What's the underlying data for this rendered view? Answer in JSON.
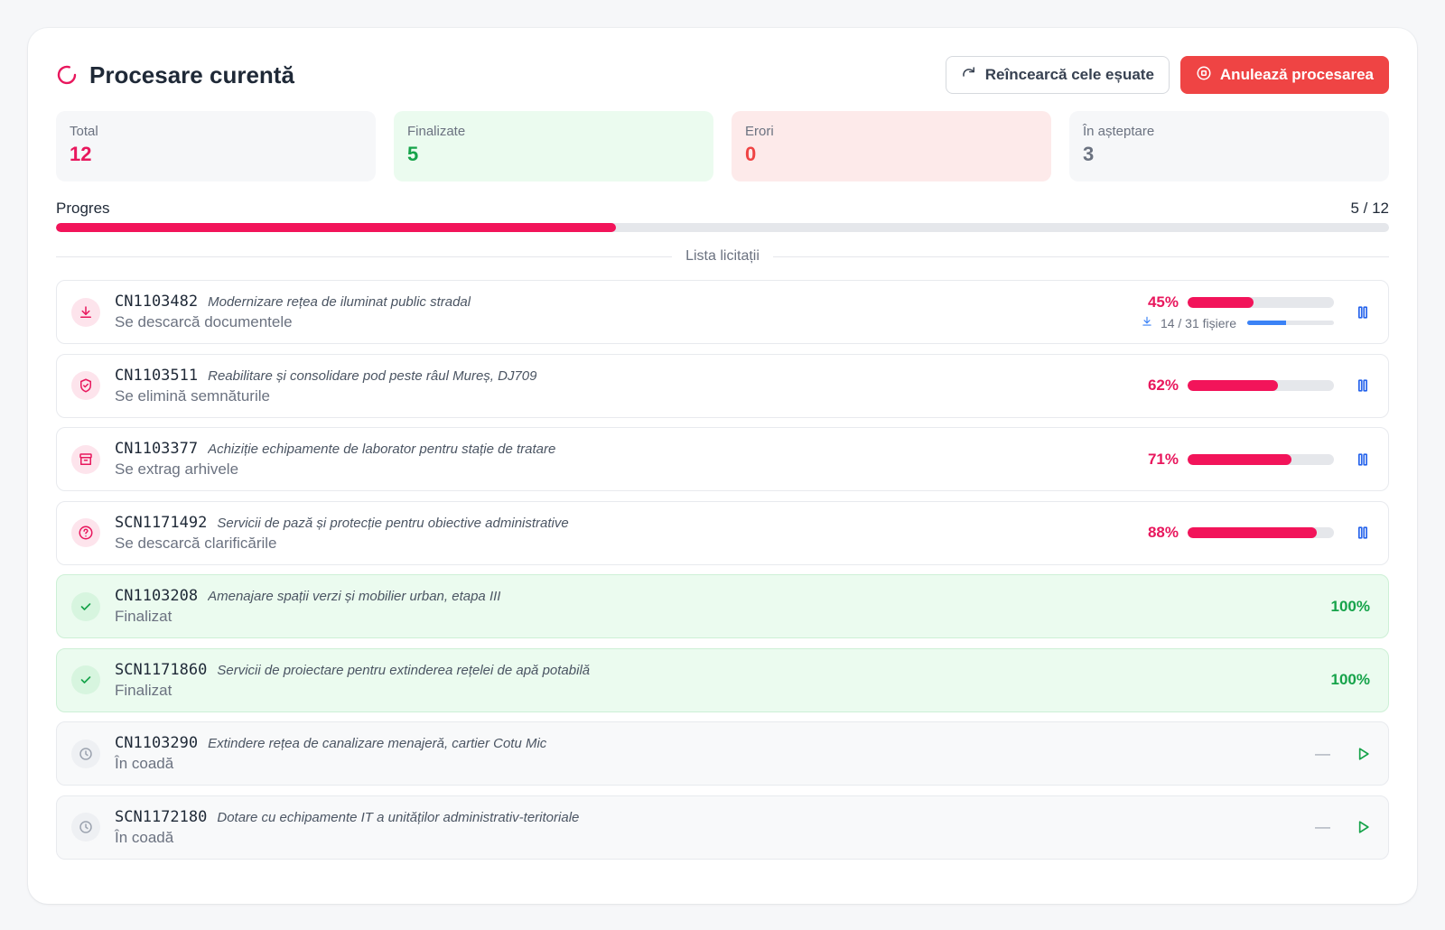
{
  "header": {
    "title": "Procesare curentă",
    "retry_label": "Reîncearcă cele eșuate",
    "cancel_label": "Anulează procesarea"
  },
  "stats": [
    {
      "label": "Total",
      "value": "12"
    },
    {
      "label": "Finalizate",
      "value": "5"
    },
    {
      "label": "Erori",
      "value": "0"
    },
    {
      "label": "În așteptare",
      "value": "3"
    }
  ],
  "progress": {
    "label": "Progres",
    "count_text": "5 / 12",
    "fraction": 0.42
  },
  "list_title": "Lista licitații",
  "items": [
    {
      "code": "CN1103482",
      "desc": "Modernizare rețea de iluminat public stradal",
      "status": "Se descarcă documentele",
      "pct_text": "45%",
      "pct": 45,
      "files_text": "14 / 31 fișiere",
      "files_fraction": 0.45
    },
    {
      "code": "CN1103511",
      "desc": "Reabilitare și consolidare pod peste râul Mureș, DJ709",
      "status": "Se elimină semnăturile",
      "pct_text": "62%",
      "pct": 62
    },
    {
      "code": "CN1103377",
      "desc": "Achiziție echipamente de laborator pentru stație de tratare",
      "status": "Se extrag arhivele",
      "pct_text": "71%",
      "pct": 71
    },
    {
      "code": "SCN1171492",
      "desc": "Servicii de pază și protecție pentru obiective administrative",
      "status": "Se descarcă clarificările",
      "pct_text": "88%",
      "pct": 88
    },
    {
      "code": "CN1103208",
      "desc": "Amenajare spații verzi și mobilier urban, etapa III",
      "status": "Finalizat",
      "pct_text": "100%"
    },
    {
      "code": "SCN1171860",
      "desc": "Servicii de proiectare pentru extinderea rețelei de apă potabilă",
      "status": "Finalizat",
      "pct_text": "100%"
    },
    {
      "code": "CN1103290",
      "desc": "Extindere rețea de canalizare menajeră, cartier Cotu Mic",
      "status": "În coadă",
      "pct_text": "—"
    },
    {
      "code": "SCN1172180",
      "desc": "Dotare cu echipamente IT a unităților administrativ-teritoriale",
      "status": "În coadă",
      "pct_text": "—"
    }
  ],
  "colors": {
    "accent": "#f2145a",
    "success": "#16a34a",
    "danger": "#ef4444",
    "info": "#3b82f6"
  },
  "icons": [
    "spinner-icon",
    "retry-icon",
    "stop-icon",
    "download-icon",
    "shield-icon",
    "archive-icon",
    "help-circle-icon",
    "check-icon",
    "clock-icon",
    "pause-icon",
    "play-icon"
  ]
}
